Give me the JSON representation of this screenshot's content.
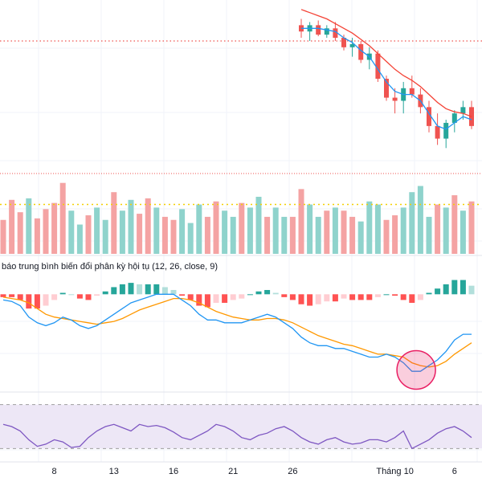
{
  "macd_title": "báo trung bình biến đổi phân kỳ hội tụ (12, 26, close, 9)",
  "x_ticks": [
    {
      "label": "8",
      "index": 6
    },
    {
      "label": "13",
      "index": 13
    },
    {
      "label": "16",
      "index": 20
    },
    {
      "label": "21",
      "index": 27
    },
    {
      "label": "26",
      "index": 34
    },
    {
      "label": "Tháng 10",
      "index": 46
    },
    {
      "label": "6",
      "index": 53
    }
  ],
  "colors": {
    "candle_up": "#26a69a",
    "candle_down": "#ef5350",
    "ma_fast": "#2196f3",
    "ma_slow": "#f44336",
    "volume_up": "#8fd3cc",
    "volume_down": "#f4a3a3",
    "macd_line": "#2196f3",
    "signal_line": "#ff9800",
    "hist_pos_strong": "#26a69a",
    "hist_pos_weak": "#b2dfdb",
    "hist_neg_strong": "#ff5252",
    "hist_neg_weak": "#ffcdd2",
    "rsi_line": "#7e57c2",
    "rsi_band": "#ede7f6",
    "dotted_red": "#ef5350",
    "dotted_yellow": "#f5d000",
    "circle": "#e91e63"
  },
  "chart_data": [
    {
      "type": "candlestick",
      "name": "price",
      "x_index_range": [
        0,
        55
      ],
      "candles": [
        {
          "i": 35,
          "o": 108.0,
          "h": 110.0,
          "l": 104.0,
          "c": 106.0
        },
        {
          "i": 36,
          "o": 106.0,
          "h": 109.0,
          "l": 103.0,
          "c": 108.0
        },
        {
          "i": 37,
          "o": 108.0,
          "h": 109.5,
          "l": 104.5,
          "c": 105.0
        },
        {
          "i": 38,
          "o": 105.0,
          "h": 108.0,
          "l": 104.0,
          "c": 107.0
        },
        {
          "i": 39,
          "o": 107.0,
          "h": 109.0,
          "l": 103.0,
          "c": 104.0
        },
        {
          "i": 40,
          "o": 104.0,
          "h": 105.0,
          "l": 100.0,
          "c": 101.0
        },
        {
          "i": 41,
          "o": 101.0,
          "h": 104.0,
          "l": 98.0,
          "c": 102.0
        },
        {
          "i": 42,
          "o": 102.0,
          "h": 103.0,
          "l": 96.0,
          "c": 97.0
        },
        {
          "i": 43,
          "o": 97.0,
          "h": 101.0,
          "l": 94.0,
          "c": 99.0
        },
        {
          "i": 44,
          "o": 99.0,
          "h": 100.0,
          "l": 90.0,
          "c": 91.0
        },
        {
          "i": 45,
          "o": 91.0,
          "h": 92.0,
          "l": 84.0,
          "c": 85.0
        },
        {
          "i": 46,
          "o": 85.0,
          "h": 88.0,
          "l": 80.0,
          "c": 84.0
        },
        {
          "i": 47,
          "o": 84.0,
          "h": 90.0,
          "l": 80.0,
          "c": 88.0
        },
        {
          "i": 48,
          "o": 88.0,
          "h": 92.0,
          "l": 85.0,
          "c": 86.0
        },
        {
          "i": 49,
          "o": 86.0,
          "h": 88.0,
          "l": 80.0,
          "c": 82.0
        },
        {
          "i": 50,
          "o": 82.0,
          "h": 84.0,
          "l": 74.0,
          "c": 76.0
        },
        {
          "i": 51,
          "o": 76.0,
          "h": 80.0,
          "l": 70.0,
          "c": 72.0
        },
        {
          "i": 52,
          "o": 72.0,
          "h": 78.0,
          "l": 69.0,
          "c": 77.0
        },
        {
          "i": 53,
          "o": 77.0,
          "h": 81.0,
          "l": 74.0,
          "c": 80.0
        },
        {
          "i": 54,
          "o": 80.0,
          "h": 84.0,
          "l": 78.0,
          "c": 82.0
        },
        {
          "i": 55,
          "o": 82.0,
          "h": 84.0,
          "l": 75.0,
          "c": 76.0
        }
      ],
      "ma_fast": [
        [
          35,
          107
        ],
        [
          36,
          107
        ],
        [
          37,
          107
        ],
        [
          38,
          106.5
        ],
        [
          39,
          106
        ],
        [
          40,
          104
        ],
        [
          41,
          102.5
        ],
        [
          42,
          100
        ],
        [
          43,
          98
        ],
        [
          44,
          94
        ],
        [
          45,
          90
        ],
        [
          46,
          87
        ],
        [
          47,
          86
        ],
        [
          48,
          86
        ],
        [
          49,
          84
        ],
        [
          50,
          80
        ],
        [
          51,
          76
        ],
        [
          52,
          75
        ],
        [
          53,
          77
        ],
        [
          54,
          79
        ],
        [
          55,
          78
        ]
      ],
      "ma_slow": [
        [
          35,
          113
        ],
        [
          36,
          112
        ],
        [
          37,
          111
        ],
        [
          38,
          110
        ],
        [
          39,
          108.5
        ],
        [
          40,
          107
        ],
        [
          41,
          105.5
        ],
        [
          42,
          103.5
        ],
        [
          43,
          101.5
        ],
        [
          44,
          99
        ],
        [
          45,
          96.5
        ],
        [
          46,
          94
        ],
        [
          47,
          92
        ],
        [
          48,
          90.5
        ],
        [
          49,
          88.5
        ],
        [
          50,
          86
        ],
        [
          51,
          83.5
        ],
        [
          52,
          81.5
        ],
        [
          53,
          80.5
        ],
        [
          54,
          80
        ],
        [
          55,
          79
        ]
      ],
      "y_range": [
        65,
        116
      ],
      "reference_line": 103
    },
    {
      "type": "bar",
      "name": "volume",
      "values": [
        22,
        35,
        27,
        36,
        23,
        29,
        33,
        46,
        28,
        19,
        25,
        30,
        22,
        40,
        28,
        35,
        26,
        36,
        30,
        24,
        22,
        29,
        20,
        32,
        24,
        34,
        28,
        24,
        33,
        30,
        37,
        24,
        30,
        24,
        24,
        42,
        32,
        24,
        28,
        30,
        28,
        24,
        21,
        34,
        32,
        22,
        25,
        30,
        40,
        44,
        24,
        32,
        30,
        38,
        28,
        34
      ],
      "directions": [
        "d",
        "d",
        "d",
        "u",
        "d",
        "d",
        "d",
        "d",
        "u",
        "u",
        "d",
        "u",
        "u",
        "d",
        "u",
        "u",
        "d",
        "d",
        "u",
        "d",
        "d",
        "u",
        "u",
        "u",
        "d",
        "d",
        "u",
        "u",
        "d",
        "u",
        "u",
        "d",
        "u",
        "u",
        "d",
        "d",
        "u",
        "u",
        "d",
        "u",
        "d",
        "d",
        "u",
        "u",
        "u",
        "d",
        "d",
        "u",
        "u",
        "u",
        "u",
        "d",
        "u",
        "d",
        "u",
        "d"
      ],
      "y_range": [
        0,
        50
      ],
      "reference_line": 32
    },
    {
      "type": "line",
      "name": "macd",
      "macd": [
        -2,
        -2.5,
        -4,
        -8,
        -10,
        -11,
        -10,
        -8,
        -9,
        -11,
        -12,
        -11,
        -9,
        -7,
        -5,
        -3,
        -2,
        -1,
        0,
        0,
        0,
        -2,
        -4,
        -7,
        -9,
        -9,
        -10,
        -10,
        -10,
        -9,
        -8,
        -7,
        -8,
        -10,
        -12,
        -15,
        -17,
        -18,
        -18,
        -19,
        -19,
        -20,
        -21,
        -22,
        -22,
        -21,
        -22,
        -24,
        -27,
        -27,
        -25,
        -23,
        -20,
        -16,
        -14,
        -14
      ],
      "signal": [
        -1,
        -1.5,
        -2,
        -3,
        -5,
        -7,
        -8,
        -8.5,
        -9,
        -9.5,
        -10,
        -10.5,
        -10,
        -9.5,
        -8.5,
        -7,
        -5.5,
        -4.5,
        -3.5,
        -2.5,
        -1.5,
        -1.5,
        -2,
        -3,
        -4.5,
        -6,
        -7,
        -8,
        -8.5,
        -9,
        -9,
        -8.5,
        -8.5,
        -9,
        -10,
        -11.5,
        -13,
        -14.5,
        -15.5,
        -16.5,
        -17.5,
        -18,
        -19,
        -20,
        -21,
        -21,
        -21.5,
        -22,
        -24,
        -25,
        -25.5,
        -25,
        -23.5,
        -21,
        -19,
        -17
      ],
      "histogram": [
        -1,
        -1,
        -2,
        -5,
        -5,
        -4,
        -2,
        0.5,
        0,
        -1.5,
        -2,
        -0.5,
        1,
        2.5,
        3.5,
        4,
        3.5,
        3.5,
        3.5,
        2.5,
        1.5,
        -0.5,
        -2,
        -4,
        -4.5,
        -3,
        -3,
        -2,
        -1.5,
        0,
        1,
        1.5,
        0.5,
        -1,
        -2,
        -3.5,
        -4,
        -3.5,
        -2.5,
        -2.5,
        -1.5,
        -2,
        -2,
        -2,
        -1,
        0,
        -0.5,
        -2,
        -3,
        -2,
        0.5,
        2,
        3.5,
        5,
        5,
        3
      ],
      "y_range": [
        -32,
        6
      ]
    },
    {
      "type": "line",
      "name": "rsi",
      "values": [
        52,
        50,
        46,
        38,
        32,
        34,
        38,
        36,
        31,
        32,
        40,
        46,
        50,
        52,
        49,
        46,
        52,
        50,
        51,
        49,
        45,
        40,
        38,
        42,
        46,
        52,
        50,
        46,
        40,
        38,
        42,
        44,
        48,
        50,
        46,
        40,
        36,
        34,
        38,
        40,
        36,
        34,
        35,
        38,
        38,
        36,
        40,
        46,
        30,
        34,
        38,
        44,
        48,
        50,
        46,
        40
      ],
      "band": [
        30,
        70
      ],
      "y_range": [
        20,
        80
      ]
    }
  ]
}
